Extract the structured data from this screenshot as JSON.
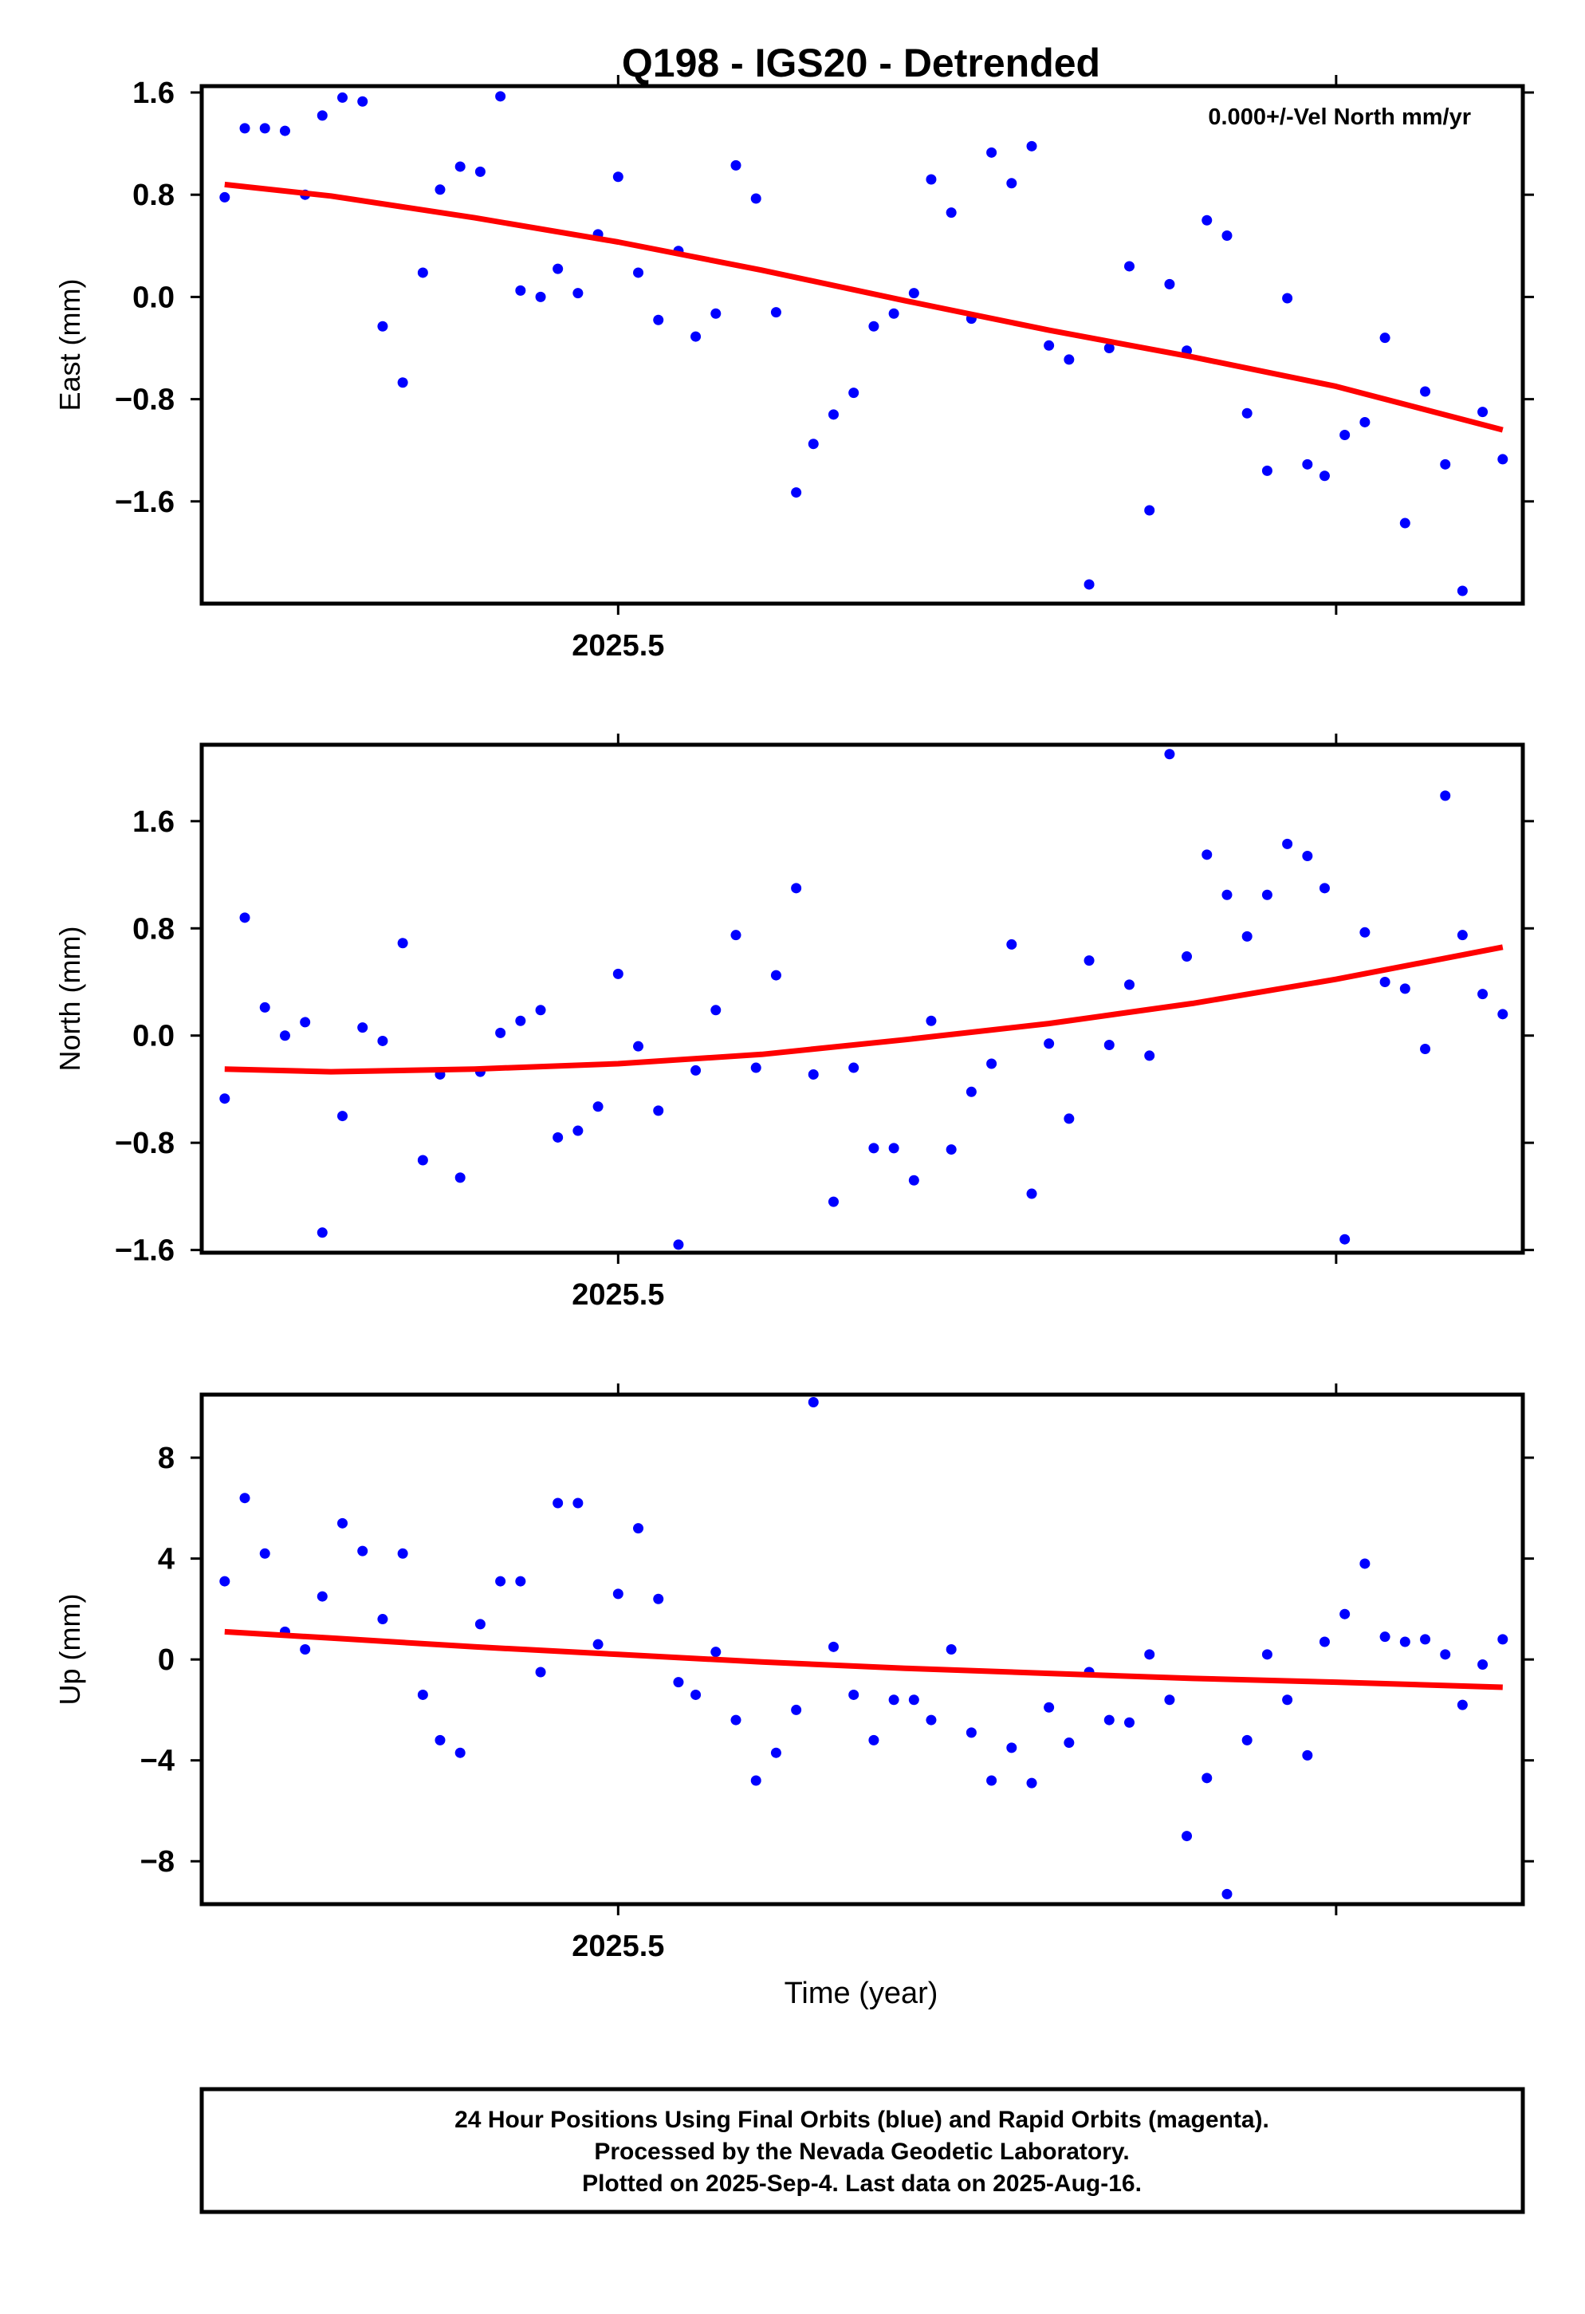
{
  "title": "Q198 - IGS20 - Detrended",
  "xlabel": "Time (year)",
  "footer": {
    "line1": "24 Hour Positions Using Final Orbits (blue) and Rapid Orbits (magenta).",
    "line2": "Processed by the Nevada Geodetic Laboratory.",
    "line3": "Plotted on 2025-Sep-4. Last data on 2025-Aug-16."
  },
  "colors": {
    "points": "#0000ff",
    "fit": "#ff0000",
    "axes": "#000000"
  },
  "chart_data": [
    {
      "type": "scatter",
      "ylabel": "East (mm)",
      "annotation": "0.000+/-Vel North mm/yr",
      "xlim": [
        2025.355,
        2025.815
      ],
      "ylim": [
        -2.4,
        1.65
      ],
      "yticks": [
        "1.6",
        "0.8",
        "0.0",
        "−0.8",
        "−1.6"
      ],
      "ytick_values": [
        1.6,
        0.8,
        0.0,
        -0.8,
        -1.6
      ],
      "xticks": [
        {
          "value": 2025.5,
          "label": "2025.5"
        },
        {
          "value": 2025.75,
          "label": ""
        }
      ],
      "show_x_labels": true,
      "x": [
        2025.363,
        2025.37,
        2025.377,
        2025.384,
        2025.391,
        2025.397,
        2025.404,
        2025.411,
        2025.418,
        2025.425,
        2025.432,
        2025.438,
        2025.445,
        2025.452,
        2025.459,
        2025.466,
        2025.473,
        2025.479,
        2025.486,
        2025.493,
        2025.5,
        2025.507,
        2025.514,
        2025.521,
        2025.527,
        2025.534,
        2025.541,
        2025.548,
        2025.555,
        2025.562,
        2025.568,
        2025.575,
        2025.582,
        2025.589,
        2025.596,
        2025.603,
        2025.609,
        2025.616,
        2025.623,
        2025.63,
        2025.637,
        2025.644,
        2025.65,
        2025.657,
        2025.664,
        2025.671,
        2025.678,
        2025.685,
        2025.692,
        2025.698,
        2025.705,
        2025.712,
        2025.719,
        2025.726,
        2025.733,
        2025.74,
        2025.746,
        2025.753,
        2025.76,
        2025.767,
        2025.774,
        2025.781,
        2025.788,
        2025.794,
        2025.801,
        2025.808
      ],
      "y": [
        0.78,
        1.32,
        1.32,
        1.3,
        0.8,
        1.42,
        1.56,
        1.53,
        -0.23,
        -0.67,
        0.19,
        0.84,
        1.02,
        0.98,
        1.57,
        0.05,
        0.0,
        0.22,
        0.03,
        0.49,
        0.94,
        0.19,
        -0.18,
        0.36,
        -0.31,
        -0.13,
        1.03,
        0.77,
        -0.12,
        -1.53,
        -1.15,
        -0.92,
        -0.75,
        -0.23,
        -0.13,
        0.03,
        0.92,
        0.66,
        -0.17,
        1.13,
        0.89,
        1.18,
        -0.38,
        -0.49,
        -2.25,
        -0.4,
        0.24,
        -1.67,
        0.1,
        -0.42,
        0.6,
        0.48,
        -0.91,
        -1.36,
        -0.01,
        -1.31,
        -1.4,
        -1.08,
        -0.98,
        -0.32,
        -1.77,
        -0.74,
        -1.31,
        -2.3,
        -0.9,
        -1.27
      ],
      "fit_x": [
        2025.363,
        2025.4,
        2025.45,
        2025.5,
        2025.55,
        2025.6,
        2025.65,
        2025.7,
        2025.75,
        2025.808
      ],
      "fit_y": [
        0.88,
        0.79,
        0.62,
        0.43,
        0.21,
        -0.03,
        -0.26,
        -0.47,
        -0.7,
        -1.04
      ]
    },
    {
      "type": "scatter",
      "ylabel": "North (mm)",
      "xlim": [
        2025.355,
        2025.815
      ],
      "ylim": [
        -1.62,
        2.17
      ],
      "yticks": [
        "1.6",
        "0.8",
        "0.0",
        "−0.8",
        "−1.6"
      ],
      "ytick_values": [
        1.6,
        0.8,
        0.0,
        -0.8,
        -1.6
      ],
      "xticks": [
        {
          "value": 2025.5,
          "label": "2025.5"
        },
        {
          "value": 2025.75,
          "label": ""
        }
      ],
      "show_x_labels": true,
      "x": [
        2025.363,
        2025.37,
        2025.377,
        2025.384,
        2025.391,
        2025.397,
        2025.404,
        2025.411,
        2025.418,
        2025.425,
        2025.432,
        2025.438,
        2025.445,
        2025.452,
        2025.459,
        2025.466,
        2025.473,
        2025.479,
        2025.486,
        2025.493,
        2025.5,
        2025.507,
        2025.514,
        2025.521,
        2025.527,
        2025.534,
        2025.541,
        2025.548,
        2025.555,
        2025.562,
        2025.568,
        2025.575,
        2025.582,
        2025.589,
        2025.596,
        2025.603,
        2025.609,
        2025.616,
        2025.623,
        2025.63,
        2025.637,
        2025.644,
        2025.65,
        2025.657,
        2025.664,
        2025.671,
        2025.678,
        2025.685,
        2025.692,
        2025.698,
        2025.705,
        2025.712,
        2025.719,
        2025.726,
        2025.733,
        2025.74,
        2025.746,
        2025.753,
        2025.76,
        2025.767,
        2025.774,
        2025.781,
        2025.788,
        2025.794,
        2025.801,
        2025.808
      ],
      "y": [
        -0.47,
        0.88,
        0.21,
        0.0,
        0.1,
        -1.47,
        -0.6,
        0.06,
        -0.04,
        0.69,
        -0.93,
        -0.29,
        -1.06,
        -0.27,
        0.02,
        0.11,
        0.19,
        -0.76,
        -0.71,
        -0.53,
        0.46,
        -0.08,
        -0.56,
        -1.56,
        -0.26,
        0.19,
        0.75,
        -0.24,
        0.45,
        1.1,
        -0.29,
        -1.24,
        -0.24,
        -0.84,
        -0.84,
        -1.08,
        0.11,
        -0.85,
        -0.42,
        -0.21,
        0.68,
        -1.18,
        -0.06,
        -0.62,
        0.56,
        -0.07,
        0.38,
        -0.15,
        2.1,
        0.59,
        1.35,
        1.05,
        0.74,
        1.05,
        1.43,
        1.34,
        1.1,
        -1.52,
        0.77,
        0.4,
        0.35,
        -0.1,
        1.79,
        0.75,
        0.31,
        0.16
      ],
      "fit_x": [
        2025.363,
        2025.4,
        2025.45,
        2025.5,
        2025.55,
        2025.6,
        2025.65,
        2025.7,
        2025.75,
        2025.808
      ],
      "fit_y": [
        -0.25,
        -0.27,
        -0.25,
        -0.21,
        -0.14,
        -0.03,
        0.09,
        0.24,
        0.42,
        0.66
      ]
    },
    {
      "type": "scatter",
      "ylabel": "Up (mm)",
      "xlim": [
        2025.355,
        2025.815
      ],
      "ylim": [
        -9.7,
        10.5
      ],
      "yticks": [
        "8",
        "4",
        "0",
        "−4",
        "−8"
      ],
      "ytick_values": [
        8,
        4,
        0,
        -4,
        -8
      ],
      "xticks": [
        {
          "value": 2025.5,
          "label": "2025.5"
        },
        {
          "value": 2025.75,
          "label": ""
        }
      ],
      "show_x_labels": true,
      "x": [
        2025.363,
        2025.37,
        2025.377,
        2025.384,
        2025.391,
        2025.397,
        2025.404,
        2025.411,
        2025.418,
        2025.425,
        2025.432,
        2025.438,
        2025.445,
        2025.452,
        2025.459,
        2025.466,
        2025.473,
        2025.479,
        2025.486,
        2025.493,
        2025.5,
        2025.507,
        2025.514,
        2025.521,
        2025.527,
        2025.534,
        2025.541,
        2025.548,
        2025.555,
        2025.562,
        2025.568,
        2025.575,
        2025.582,
        2025.589,
        2025.596,
        2025.603,
        2025.609,
        2025.616,
        2025.623,
        2025.63,
        2025.637,
        2025.644,
        2025.65,
        2025.657,
        2025.664,
        2025.671,
        2025.678,
        2025.685,
        2025.692,
        2025.698,
        2025.705,
        2025.712,
        2025.719,
        2025.726,
        2025.733,
        2025.74,
        2025.746,
        2025.753,
        2025.76,
        2025.767,
        2025.774,
        2025.781,
        2025.788,
        2025.794,
        2025.801,
        2025.808
      ],
      "y": [
        3.1,
        6.4,
        4.2,
        1.1,
        0.4,
        2.5,
        5.4,
        4.3,
        1.6,
        4.2,
        -1.4,
        -3.2,
        -3.7,
        1.4,
        3.1,
        3.1,
        -0.5,
        6.2,
        6.2,
        0.6,
        2.6,
        5.2,
        2.4,
        -0.9,
        -1.4,
        0.3,
        -2.4,
        -4.8,
        -3.7,
        -2.0,
        10.2,
        0.5,
        -1.4,
        -3.2,
        -1.6,
        -1.6,
        -2.4,
        0.4,
        -2.9,
        -4.8,
        -3.5,
        -4.9,
        -1.9,
        -3.3,
        -0.5,
        -2.4,
        -2.5,
        0.2,
        -1.6,
        -7.0,
        -4.7,
        -9.3,
        -3.2,
        0.2,
        -1.6,
        -3.8,
        0.7,
        1.8,
        3.8,
        0.9,
        0.7,
        0.8,
        0.2,
        -1.8,
        -0.2,
        0.8
      ],
      "fit_x": [
        2025.363,
        2025.4,
        2025.45,
        2025.5,
        2025.55,
        2025.6,
        2025.65,
        2025.7,
        2025.75,
        2025.808
      ],
      "fit_y": [
        1.1,
        0.85,
        0.5,
        0.2,
        -0.1,
        -0.35,
        -0.55,
        -0.75,
        -0.9,
        -1.1
      ]
    }
  ]
}
